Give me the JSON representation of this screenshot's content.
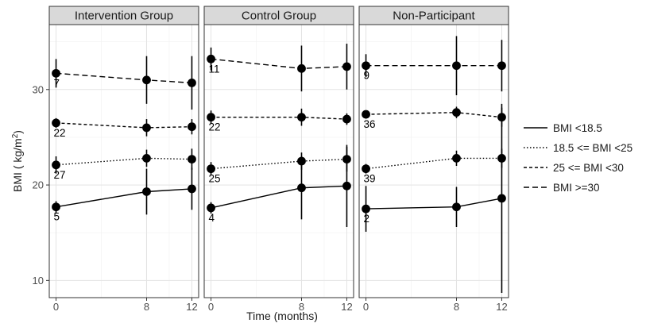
{
  "chart_data": {
    "type": "line",
    "xlabel": "Time (months)",
    "ylabel_main": "BMI ( kg/m",
    "ylabel_sup": "2",
    "ylabel_close": ")",
    "x_ticks": [
      0,
      8,
      12
    ],
    "x_tick_labels": [
      "0",
      "8",
      "12"
    ],
    "y_ticks": [
      10,
      20,
      30
    ],
    "y_tick_labels": [
      "10",
      "20",
      "30"
    ],
    "xlim": [
      -0.6,
      12.6
    ],
    "ylim": [
      8.2,
      36.8
    ],
    "grid": true,
    "legend_position": "right",
    "legend": [
      {
        "label": "BMI <18.5",
        "dash": "solid"
      },
      {
        "label": "18.5 <= BMI <25",
        "dash": "dotted"
      },
      {
        "label": "25 <= BMI <30",
        "dash": "dashed"
      },
      {
        "label": "BMI >=30",
        "dash": "longdash"
      }
    ],
    "panels": [
      {
        "title": "Intervention Group",
        "series": [
          {
            "legend_index": 0,
            "x": [
              0,
              8,
              12
            ],
            "y": [
              17.7,
              19.3,
              19.6
            ],
            "lower": [
              17.1,
              16.9,
              17.4
            ],
            "upper": [
              18.3,
              21.7,
              21.8
            ],
            "n_label": "5"
          },
          {
            "legend_index": 1,
            "x": [
              0,
              8,
              12
            ],
            "y": [
              22.1,
              22.8,
              22.7
            ],
            "lower": [
              21.2,
              21.9,
              21.6
            ],
            "upper": [
              23.0,
              23.7,
              23.8
            ],
            "n_label": "27"
          },
          {
            "legend_index": 2,
            "x": [
              0,
              8,
              12
            ],
            "y": [
              26.5,
              26.0,
              26.1
            ],
            "lower": [
              26.0,
              25.1,
              25.3
            ],
            "upper": [
              27.0,
              26.9,
              26.9
            ],
            "n_label": "22"
          },
          {
            "legend_index": 3,
            "x": [
              0,
              8,
              12
            ],
            "y": [
              31.7,
              31.0,
              30.7
            ],
            "lower": [
              30.2,
              28.5,
              27.9
            ],
            "upper": [
              33.2,
              33.5,
              33.5
            ],
            "n_label": "7"
          }
        ]
      },
      {
        "title": "Control Group",
        "series": [
          {
            "legend_index": 0,
            "x": [
              0,
              8,
              12
            ],
            "y": [
              17.6,
              19.7,
              19.9
            ],
            "lower": [
              17.0,
              16.4,
              15.6
            ],
            "upper": [
              18.2,
              23.0,
              24.2
            ],
            "n_label": "4"
          },
          {
            "legend_index": 1,
            "x": [
              0,
              8,
              12
            ],
            "y": [
              21.7,
              22.5,
              22.7
            ],
            "lower": [
              21.0,
              21.6,
              21.4
            ],
            "upper": [
              22.4,
              23.4,
              24.0
            ],
            "n_label": "25"
          },
          {
            "legend_index": 2,
            "x": [
              0,
              8,
              12
            ],
            "y": [
              27.1,
              27.1,
              26.9
            ],
            "lower": [
              26.4,
              26.2,
              26.3
            ],
            "upper": [
              27.8,
              28.0,
              27.5
            ],
            "n_label": "22"
          },
          {
            "legend_index": 3,
            "x": [
              0,
              8,
              12
            ],
            "y": [
              33.2,
              32.2,
              32.4
            ],
            "lower": [
              32.0,
              29.8,
              30.0
            ],
            "upper": [
              34.4,
              34.6,
              34.8
            ],
            "n_label": "11"
          }
        ]
      },
      {
        "title": "Non-Participant",
        "series": [
          {
            "legend_index": 0,
            "x": [
              0,
              8,
              12
            ],
            "y": [
              17.5,
              17.7,
              18.6
            ],
            "lower": [
              15.1,
              15.6,
              8.7
            ],
            "upper": [
              19.9,
              19.8,
              28.5
            ],
            "n_label": "2"
          },
          {
            "legend_index": 1,
            "x": [
              0,
              8,
              12
            ],
            "y": [
              21.7,
              22.8,
              22.8
            ],
            "lower": [
              21.2,
              22.0,
              21.8
            ],
            "upper": [
              22.2,
              23.6,
              23.8
            ],
            "n_label": "39"
          },
          {
            "legend_index": 2,
            "x": [
              0,
              8,
              12
            ],
            "y": [
              27.4,
              27.6,
              27.1
            ],
            "lower": [
              27.0,
              27.0,
              26.1
            ],
            "upper": [
              27.8,
              28.2,
              28.1
            ],
            "n_label": "36"
          },
          {
            "legend_index": 3,
            "x": [
              0,
              8,
              12
            ],
            "y": [
              32.5,
              32.5,
              32.5
            ],
            "lower": [
              31.3,
              29.4,
              29.8
            ],
            "upper": [
              33.7,
              35.6,
              35.2
            ],
            "n_label": "9"
          }
        ]
      }
    ]
  }
}
